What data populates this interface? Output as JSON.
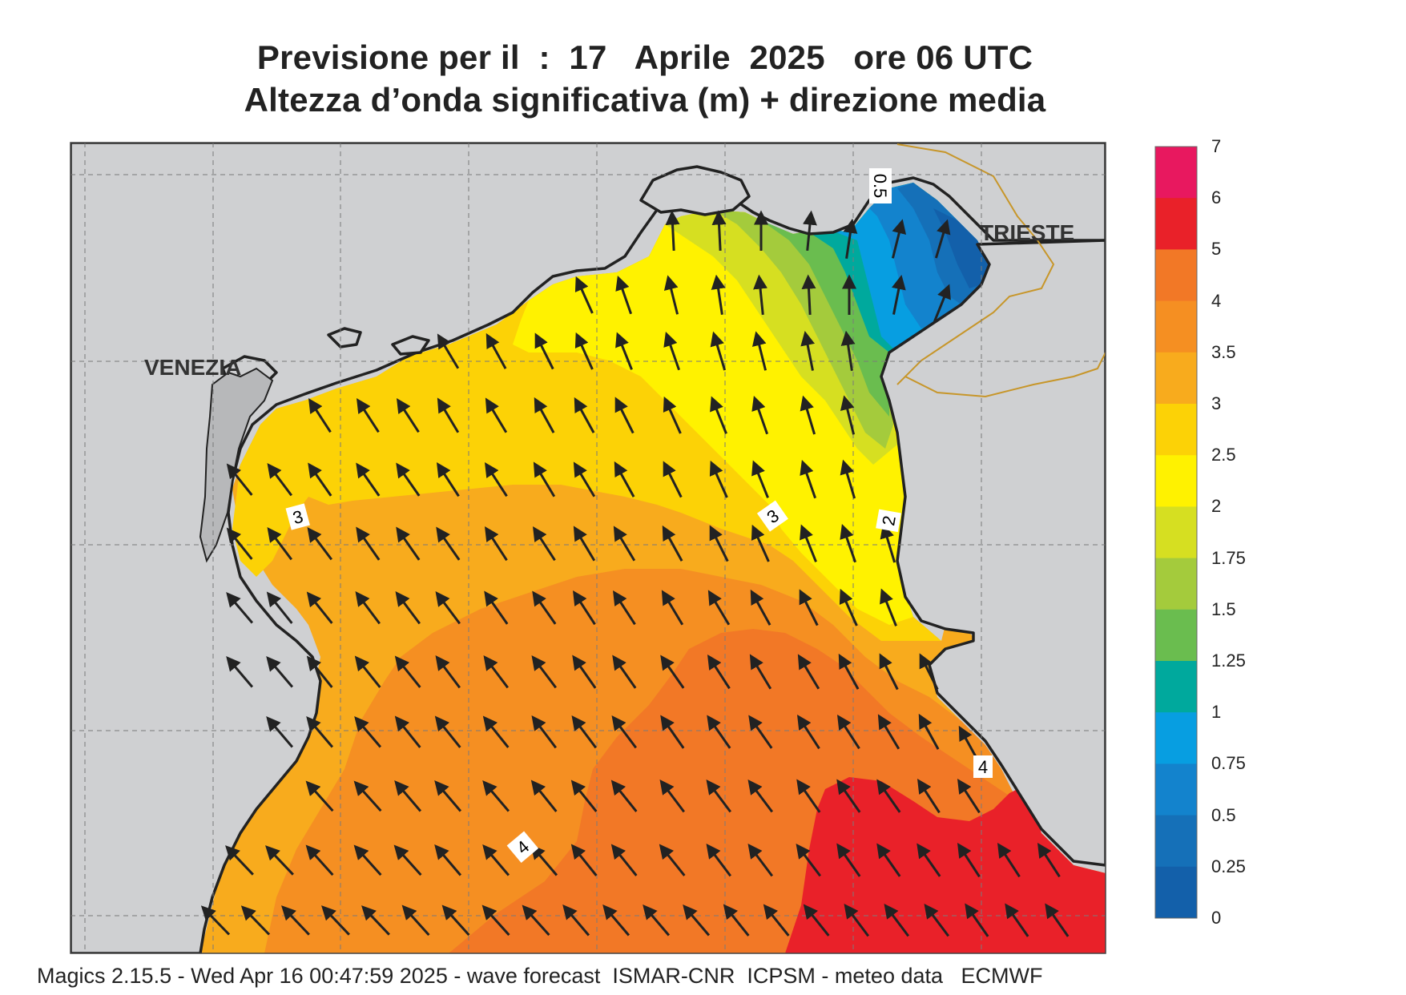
{
  "header": {
    "title_line1": "Previsione per il  :  17   Aprile  2025   ore 06 UTC",
    "title_line2": "Altezza d’onda significativa (m) + direzione media"
  },
  "places": {
    "venezia": "VENEZIA",
    "trieste": "TRIESTE"
  },
  "contour_labels": {
    "c3a": "3",
    "c3b": "3",
    "c2": "2",
    "c4a": "4",
    "c4b": "4",
    "c05": "0.5"
  },
  "legend": {
    "ticks": [
      "7",
      "6",
      "5",
      "4",
      "3.5",
      "3",
      "2.5",
      "2",
      "1.75",
      "1.5",
      "1.25",
      "1",
      "0.75",
      "0.5",
      "0.25",
      "0"
    ],
    "colors": [
      "#e8185f",
      "#e92129",
      "#f27826",
      "#f58f22",
      "#f8ab1d",
      "#fcd206",
      "#fff200",
      "#d6df21",
      "#a4cb3c",
      "#6abd4f",
      "#00a99d",
      "#079ee1",
      "#1383cd",
      "#1570b8",
      "#1360aa"
    ]
  },
  "wave_direction": "toward north-west",
  "footer": "Magics 2.15.5 - Wed Apr 16 00:47:59 2025 - wave forecast  ISMAR-CNR  ICPSM - meteo data   ECMWF"
}
